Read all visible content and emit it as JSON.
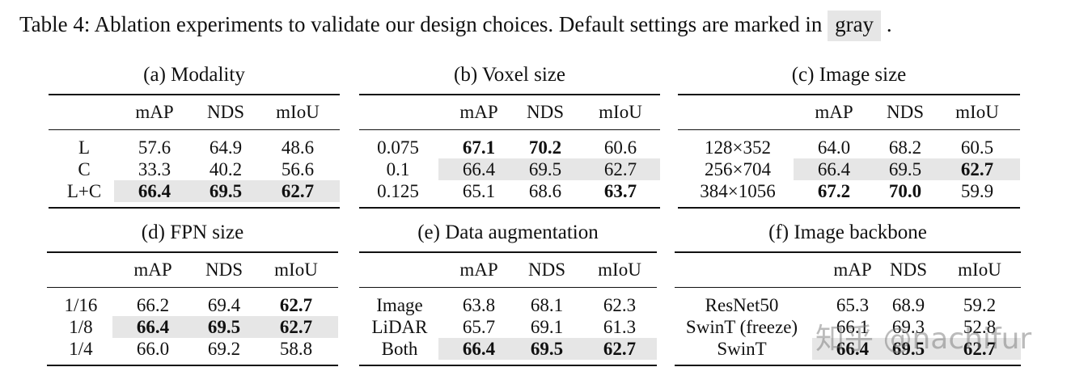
{
  "caption": {
    "text": "Table 4: Ablation experiments to validate our design choices. Default settings are marked in",
    "highlight": "gray",
    "end": "."
  },
  "header": [
    "mAP",
    "NDS",
    "mIoU"
  ],
  "panels": [
    {
      "title": "(a) Modality",
      "rows": [
        {
          "label": "L",
          "values": [
            "57.6",
            "64.9",
            "48.6"
          ],
          "bold": [
            false,
            false,
            false
          ],
          "default": false
        },
        {
          "label": "C",
          "values": [
            "33.3",
            "40.2",
            "56.6"
          ],
          "bold": [
            false,
            false,
            false
          ],
          "default": false
        },
        {
          "label": "L+C",
          "values": [
            "66.4",
            "69.5",
            "62.7"
          ],
          "bold": [
            true,
            true,
            true
          ],
          "default": true
        }
      ]
    },
    {
      "title": "(b) Voxel size",
      "rows": [
        {
          "label": "0.075",
          "values": [
            "67.1",
            "70.2",
            "60.6"
          ],
          "bold": [
            true,
            true,
            false
          ],
          "default": false
        },
        {
          "label": "0.1",
          "values": [
            "66.4",
            "69.5",
            "62.7"
          ],
          "bold": [
            false,
            false,
            false
          ],
          "default": true
        },
        {
          "label": "0.125",
          "values": [
            "65.1",
            "68.6",
            "63.7"
          ],
          "bold": [
            false,
            false,
            true
          ],
          "default": false
        }
      ]
    },
    {
      "title": "(c) Image size",
      "rows": [
        {
          "label": "128×352",
          "values": [
            "64.0",
            "68.2",
            "60.5"
          ],
          "bold": [
            false,
            false,
            false
          ],
          "default": false
        },
        {
          "label": "256×704",
          "values": [
            "66.4",
            "69.5",
            "62.7"
          ],
          "bold": [
            false,
            false,
            true
          ],
          "default": true
        },
        {
          "label": "384×1056",
          "values": [
            "67.2",
            "70.0",
            "59.9"
          ],
          "bold": [
            true,
            true,
            false
          ],
          "default": false
        }
      ]
    },
    {
      "title": "(d) FPN size",
      "rows": [
        {
          "label": "1/16",
          "values": [
            "66.2",
            "69.4",
            "62.7"
          ],
          "bold": [
            false,
            false,
            true
          ],
          "default": false
        },
        {
          "label": "1/8",
          "values": [
            "66.4",
            "69.5",
            "62.7"
          ],
          "bold": [
            true,
            true,
            true
          ],
          "default": true
        },
        {
          "label": "1/4",
          "values": [
            "66.0",
            "69.2",
            "58.8"
          ],
          "bold": [
            false,
            false,
            false
          ],
          "default": false
        }
      ]
    },
    {
      "title": "(e) Data augmentation",
      "rows": [
        {
          "label": "Image",
          "values": [
            "63.8",
            "68.1",
            "62.3"
          ],
          "bold": [
            false,
            false,
            false
          ],
          "default": false
        },
        {
          "label": "LiDAR",
          "values": [
            "65.7",
            "69.1",
            "61.3"
          ],
          "bold": [
            false,
            false,
            false
          ],
          "default": false
        },
        {
          "label": "Both",
          "values": [
            "66.4",
            "69.5",
            "62.7"
          ],
          "bold": [
            true,
            true,
            true
          ],
          "default": true
        }
      ]
    },
    {
      "title": "(f) Image backbone",
      "rows": [
        {
          "label": "ResNet50",
          "values": [
            "65.3",
            "68.9",
            "59.2"
          ],
          "bold": [
            false,
            false,
            false
          ],
          "default": false
        },
        {
          "label": "SwinT (freeze)",
          "values": [
            "66.1",
            "69.3",
            "52.8"
          ],
          "bold": [
            false,
            false,
            false
          ],
          "default": false
        },
        {
          "label": "SwinT",
          "values": [
            "66.4",
            "69.5",
            "62.7"
          ],
          "bold": [
            true,
            true,
            true
          ],
          "default": true
        }
      ]
    }
  ],
  "watermark": "知乎 @nachifur"
}
